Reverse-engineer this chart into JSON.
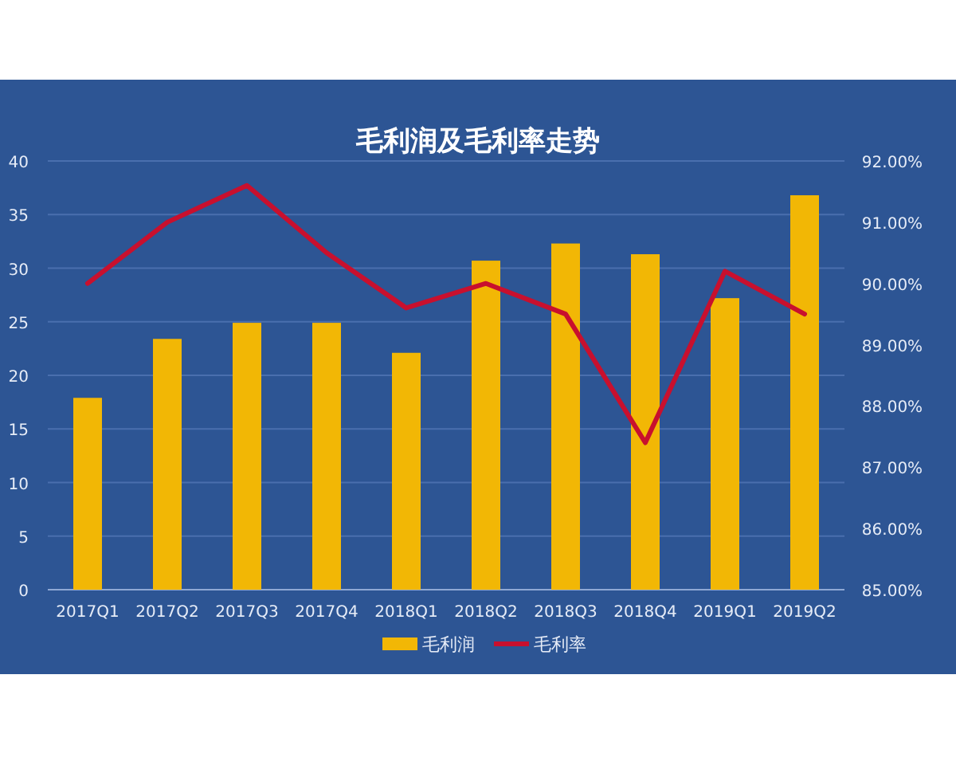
{
  "chart_data": {
    "type": "bar",
    "title": "毛利润及毛利率走势",
    "categories": [
      "2017Q1",
      "2017Q2",
      "2017Q3",
      "2017Q4",
      "2018Q1",
      "2018Q2",
      "2018Q3",
      "2018Q4",
      "2019Q1",
      "2019Q2"
    ],
    "series": [
      {
        "name": "毛利润",
        "color": "#f2b705",
        "values": [
          17.9,
          23.4,
          24.9,
          24.9,
          22.1,
          30.7,
          32.3,
          31.3,
          27.2,
          36.8
        ]
      },
      {
        "name": "毛利率",
        "type": "line",
        "axis": "y2",
        "color": "#c8102e",
        "values": [
          90.0,
          91.0,
          91.6,
          90.5,
          89.6,
          90.0,
          89.5,
          87.4,
          90.2,
          89.5
        ]
      }
    ],
    "ylim": [
      0,
      40
    ],
    "yticks": [
      0,
      5,
      10,
      15,
      20,
      25,
      30,
      35,
      40
    ],
    "y2lim": [
      85,
      92
    ],
    "y2ticks": [
      {
        "value": 85,
        "label": "85.00%"
      },
      {
        "value": 86,
        "label": "86.00%"
      },
      {
        "value": 87,
        "label": "87.00%"
      },
      {
        "value": 88,
        "label": "88.00%"
      },
      {
        "value": 89,
        "label": "89.00%"
      },
      {
        "value": 90,
        "label": "90.00%"
      },
      {
        "value": 91,
        "label": "91.00%"
      },
      {
        "value": 92,
        "label": "92.00%"
      }
    ],
    "grid": "y",
    "legend": "bottom"
  }
}
